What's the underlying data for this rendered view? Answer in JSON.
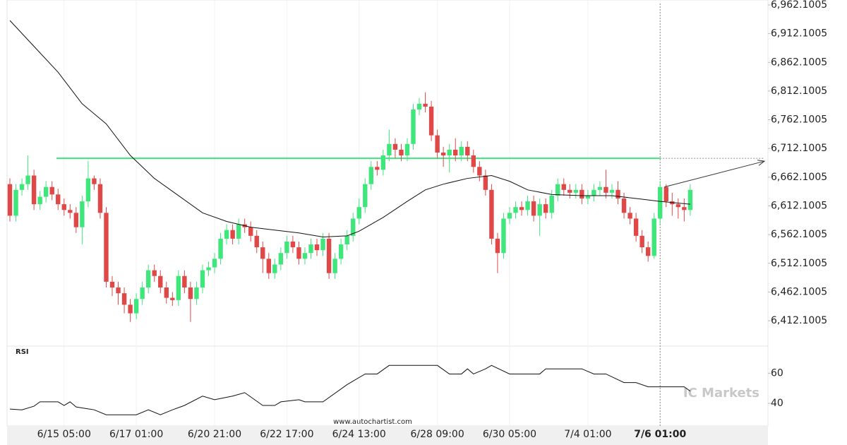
{
  "chart_data": {
    "type": "candlestick",
    "categories": [
      null,
      null,
      null,
      null,
      null,
      null,
      null,
      null,
      null,
      "6/15 05:00",
      null,
      null,
      null,
      null,
      null,
      null,
      null,
      null,
      null,
      null,
      null,
      "6/17 01:00",
      null,
      null,
      null,
      null,
      null,
      null,
      null,
      null,
      null,
      null,
      null,
      null,
      "6/20 21:00",
      null,
      null,
      null,
      null,
      null,
      null,
      null,
      null,
      null,
      null,
      null,
      "6/22 17:00",
      null,
      null,
      null,
      null,
      null,
      null,
      null,
      null,
      null,
      null,
      null,
      "6/24 13:00",
      null,
      null,
      null,
      null,
      null,
      null,
      null,
      null,
      null,
      null,
      null,
      null,
      "6/28 09:00",
      null,
      null,
      null,
      null,
      null,
      null,
      null,
      null,
      null,
      null,
      null,
      "6/30 05:00",
      null,
      null,
      null,
      null,
      null,
      null,
      null,
      null,
      null,
      null,
      null,
      null,
      "7/4 01:00",
      null,
      null,
      null,
      null,
      null,
      null,
      null,
      null,
      null,
      null,
      null,
      "7/6 01:00",
      null,
      null,
      null,
      null,
      null
    ],
    "open": [
      6650,
      6595,
      6640,
      6650,
      6665,
      6615,
      6628,
      6645,
      6632,
      6615,
      6605,
      6600,
      6575,
      6620,
      6660,
      6650,
      6600,
      6480,
      6470,
      6460,
      6440,
      6425,
      6450,
      6470,
      6500,
      6490,
      6470,
      6452,
      6448,
      6490,
      6470,
      6450,
      6470,
      6500,
      6505,
      6520,
      6555,
      6570,
      6555,
      6580,
      6575,
      6560,
      6540,
      6520,
      6495,
      6510,
      6530,
      6550,
      6540,
      6520,
      6530,
      6545,
      6535,
      6555,
      6495,
      6520,
      6545,
      6560,
      6590,
      6610,
      6650,
      6680,
      6675,
      6700,
      6720,
      6710,
      6700,
      6720,
      6780,
      6790,
      6785,
      6735,
      6705,
      6700,
      6710,
      6700,
      6715,
      6700,
      6680,
      6665,
      6640,
      6555,
      6530,
      6590,
      6600,
      6610,
      6605,
      6620,
      6595,
      6615,
      6600,
      6630,
      6650,
      6640,
      6635,
      6640,
      6625,
      6630,
      6640,
      6645,
      6635,
      6640,
      6625,
      6600,
      6590,
      6560,
      6540,
      6525,
      6590,
      6645,
      6620,
      6615,
      6610,
      6605
    ],
    "high": [
      6660,
      6650,
      6660,
      6700,
      6675,
      6638,
      6655,
      6655,
      6642,
      6625,
      6615,
      6610,
      6630,
      6690,
      6665,
      6660,
      6610,
      6490,
      6480,
      6470,
      6450,
      6460,
      6480,
      6510,
      6510,
      6500,
      6480,
      6462,
      6500,
      6500,
      6480,
      6480,
      6510,
      6515,
      6530,
      6565,
      6580,
      6580,
      6590,
      6590,
      6585,
      6570,
      6550,
      6530,
      6520,
      6540,
      6560,
      6560,
      6550,
      6540,
      6555,
      6555,
      6565,
      6565,
      6530,
      6555,
      6570,
      6600,
      6625,
      6660,
      6690,
      6690,
      6710,
      6745,
      6730,
      6720,
      6730,
      6790,
      6800,
      6810,
      6795,
      6745,
      6715,
      6720,
      6730,
      6725,
      6725,
      6710,
      6690,
      6675,
      6650,
      6565,
      6600,
      6610,
      6620,
      6620,
      6630,
      6630,
      6625,
      6625,
      6640,
      6660,
      6660,
      6650,
      6650,
      6650,
      6640,
      6650,
      6655,
      6675,
      6650,
      6655,
      6635,
      6610,
      6600,
      6570,
      6550,
      6600,
      6655,
      6650,
      6635,
      6625,
      6625,
      6650
    ],
    "low": [
      6585,
      6585,
      6630,
      6640,
      6605,
      6605,
      6618,
      6622,
      6605,
      6595,
      6590,
      6565,
      6545,
      6610,
      6640,
      6590,
      6470,
      6455,
      6440,
      6425,
      6410,
      6415,
      6440,
      6460,
      6480,
      6460,
      6442,
      6438,
      6438,
      6460,
      6410,
      6440,
      6460,
      6490,
      6495,
      6510,
      6545,
      6545,
      6545,
      6565,
      6550,
      6530,
      6495,
      6485,
      6485,
      6500,
      6520,
      6530,
      6510,
      6510,
      6520,
      6525,
      6525,
      6485,
      6485,
      6510,
      6535,
      6550,
      6580,
      6600,
      6640,
      6665,
      6665,
      6690,
      6695,
      6690,
      6690,
      6710,
      6770,
      6775,
      6725,
      6695,
      6680,
      6670,
      6690,
      6690,
      6690,
      6670,
      6655,
      6630,
      6545,
      6495,
      6520,
      6580,
      6590,
      6595,
      6595,
      6585,
      6560,
      6590,
      6590,
      6620,
      6630,
      6625,
      6625,
      6615,
      6615,
      6620,
      6630,
      6625,
      6625,
      6615,
      6590,
      6580,
      6550,
      6530,
      6515,
      6520,
      6580,
      6610,
      6595,
      6590,
      6585,
      6595
    ],
    "close": [
      6595,
      6640,
      6650,
      6665,
      6615,
      6628,
      6645,
      6632,
      6615,
      6605,
      6600,
      6575,
      6620,
      6660,
      6650,
      6600,
      6480,
      6470,
      6460,
      6440,
      6425,
      6450,
      6470,
      6500,
      6490,
      6470,
      6452,
      6448,
      6490,
      6470,
      6450,
      6470,
      6500,
      6505,
      6520,
      6555,
      6570,
      6555,
      6580,
      6575,
      6560,
      6540,
      6520,
      6495,
      6510,
      6530,
      6550,
      6540,
      6520,
      6530,
      6545,
      6535,
      6555,
      6495,
      6520,
      6545,
      6560,
      6590,
      6610,
      6650,
      6680,
      6675,
      6700,
      6720,
      6710,
      6700,
      6720,
      6780,
      6790,
      6785,
      6735,
      6705,
      6700,
      6710,
      6700,
      6715,
      6700,
      6680,
      6665,
      6640,
      6555,
      6530,
      6590,
      6600,
      6610,
      6605,
      6620,
      6595,
      6615,
      6600,
      6630,
      6650,
      6640,
      6635,
      6640,
      6625,
      6630,
      6640,
      6645,
      6635,
      6640,
      6625,
      6600,
      6590,
      6560,
      6540,
      6525,
      6590,
      6645,
      6620,
      6615,
      6610,
      6605,
      6640
    ],
    "colors": {
      "up": "#3ee67c",
      "down": "#e04848"
    },
    "ylim": [
      6367.9,
      6970.7
    ],
    "yticks": [
      {
        "value": 6962.1005,
        "label": "6,962.1005"
      },
      {
        "value": 6912.1005,
        "label": "6,912.1005"
      },
      {
        "value": 6862.1005,
        "label": "6,862.1005"
      },
      {
        "value": 6812.1005,
        "label": "6,812.1005"
      },
      {
        "value": 6762.1005,
        "label": "6,762.1005"
      },
      {
        "value": 6712.1005,
        "label": "6,712.1005"
      },
      {
        "value": 6662.1005,
        "label": "6,662.1005"
      },
      {
        "value": 6612.1005,
        "label": "6,612.1005"
      },
      {
        "value": 6562.1005,
        "label": "6,562.1005"
      },
      {
        "value": 6512.1005,
        "label": "6,512.1005"
      },
      {
        "value": 6462.1005,
        "label": "6,462.1005"
      },
      {
        "value": 6412.1005,
        "label": "6,412.1005"
      }
    ],
    "moving_average": {
      "color": "#111111",
      "x": [
        0,
        4,
        8,
        12,
        16,
        20,
        24,
        28,
        32,
        36,
        40,
        44,
        48,
        52,
        56,
        58,
        62,
        66,
        69,
        72,
        76,
        80,
        83,
        86,
        90,
        95,
        100,
        104,
        108,
        113
      ],
      "values": [
        6935,
        6890,
        6845,
        6790,
        6755,
        6700,
        6660,
        6630,
        6600,
        6585,
        6575,
        6570,
        6565,
        6558,
        6560,
        6568,
        6592,
        6620,
        6640,
        6650,
        6660,
        6665,
        6655,
        6640,
        6632,
        6630,
        6630,
        6625,
        6620,
        6615
      ]
    },
    "level": 6695,
    "level_color": "#3ee67c",
    "forecast": [
      6645,
      6690
    ],
    "rsi": {
      "title": "RSI",
      "color": "#111111",
      "ylim": [
        25,
        78
      ],
      "yticks": [
        60,
        40
      ],
      "x": [
        0,
        2,
        4,
        5,
        8,
        9,
        10,
        11,
        14,
        16,
        21,
        23,
        25,
        27,
        29,
        32,
        34,
        37,
        39,
        42,
        44,
        45,
        48,
        49,
        52,
        56,
        59,
        61,
        63,
        71,
        73,
        75,
        76,
        77,
        79,
        80,
        83,
        88,
        89,
        91,
        95,
        97,
        99,
        102,
        104,
        106,
        112,
        113
      ],
      "values": [
        36.2,
        35.7,
        38.1,
        41,
        41,
        38.6,
        41,
        37.6,
        35.7,
        32.4,
        32.4,
        35.7,
        32.4,
        35.7,
        38.6,
        44.8,
        42.4,
        44.8,
        47.1,
        38.6,
        38.6,
        41,
        42.4,
        41,
        41,
        52.4,
        59.5,
        59.5,
        65.2,
        65.2,
        59.5,
        59.5,
        62.9,
        59.5,
        62.9,
        65.2,
        59.5,
        59.5,
        62.9,
        62.9,
        62.9,
        59.5,
        59.5,
        53.8,
        53.8,
        51,
        51,
        48.1
      ]
    },
    "watermark": "IC Markets",
    "source": "www.autochartist.com"
  }
}
